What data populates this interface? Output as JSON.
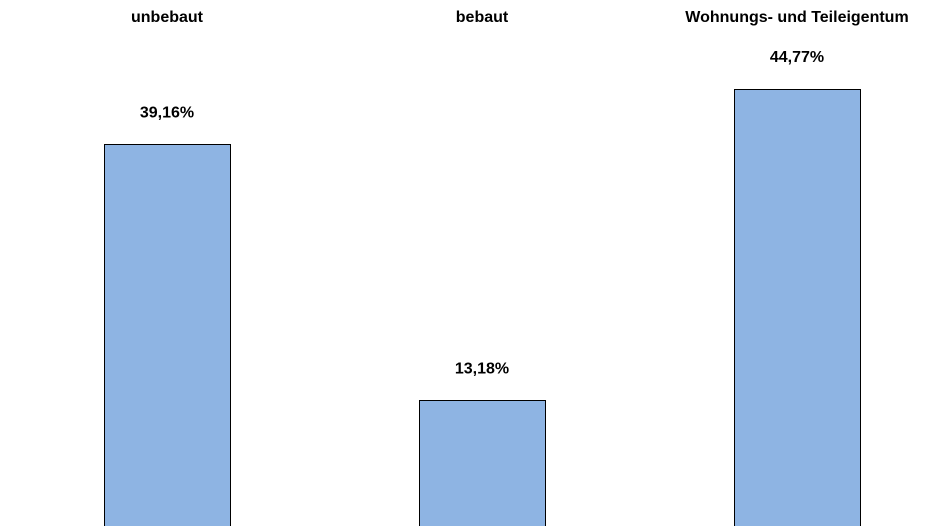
{
  "chart_data": {
    "type": "bar",
    "categories": [
      "unbebaut",
      "bebaut",
      "Wohnungs- und Teileigentum"
    ],
    "values": [
      39.16,
      13.18,
      44.77
    ],
    "value_labels": [
      "39,16%",
      "13,18%",
      "44,77%"
    ],
    "color": "#8eb4e3"
  }
}
